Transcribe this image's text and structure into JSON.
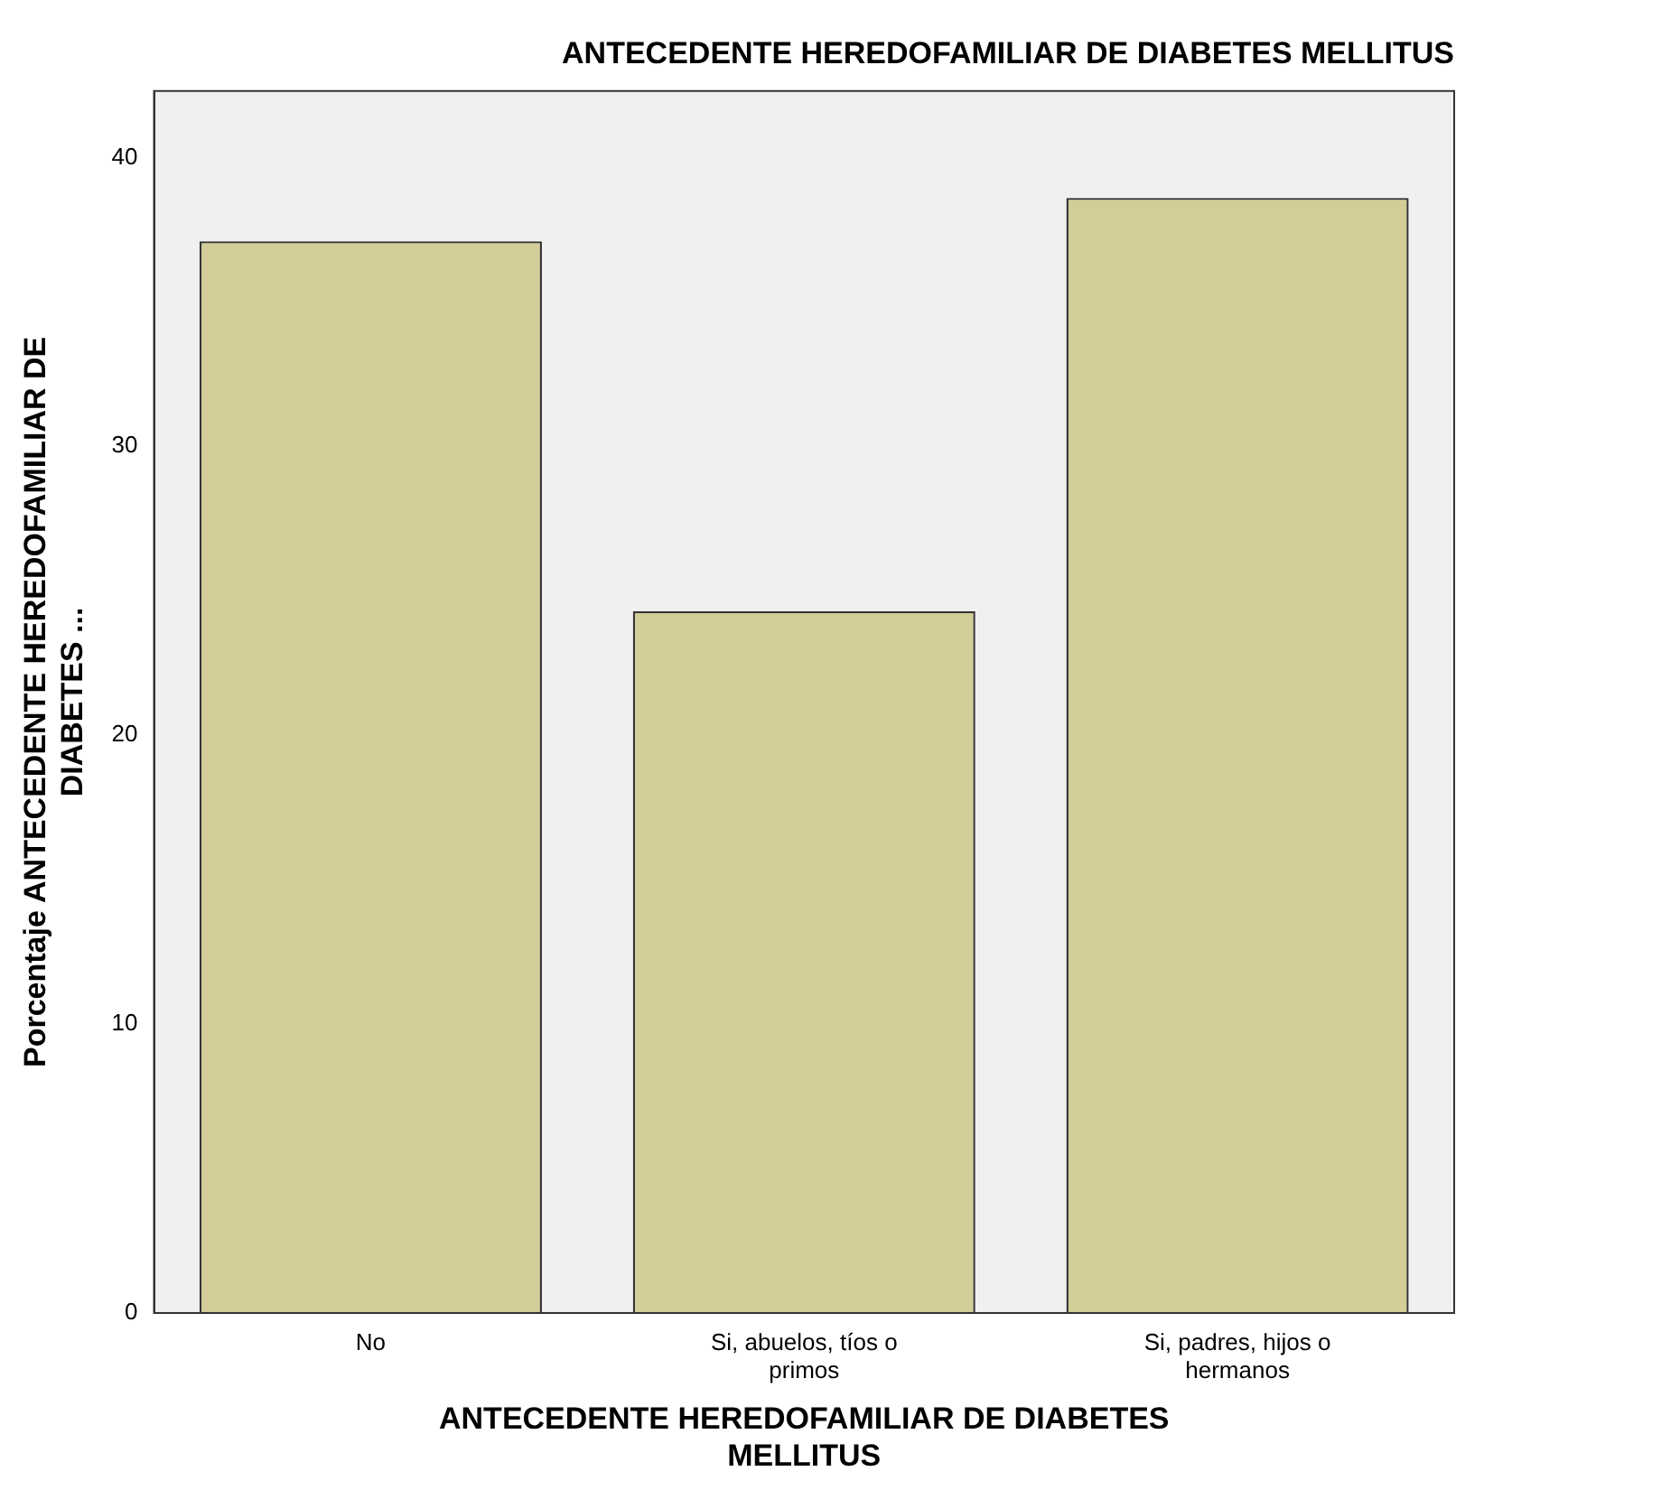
{
  "chart_data": {
    "type": "bar",
    "title": "ANTECEDENTE HEREDOFAMILIAR DE DIABETES MELLITUS",
    "xlabel": "ANTECEDENTE HEREDOFAMILIAR DE DIABETES MELLITUS",
    "ylabel": "Porcentaje ANTECEDENTE HEREDOFAMILIAR DE DIABETES ...",
    "categories": [
      "No",
      "Si, abuelos, tíos o primos",
      "Si, padres, hijos o hermanos"
    ],
    "values": [
      37.1,
      24.3,
      38.6
    ],
    "color": "#d3ce98",
    "ylim": [
      0,
      42.3
    ],
    "yticks": [
      0,
      10,
      20,
      30,
      40
    ],
    "grid": false,
    "legend": false
  }
}
